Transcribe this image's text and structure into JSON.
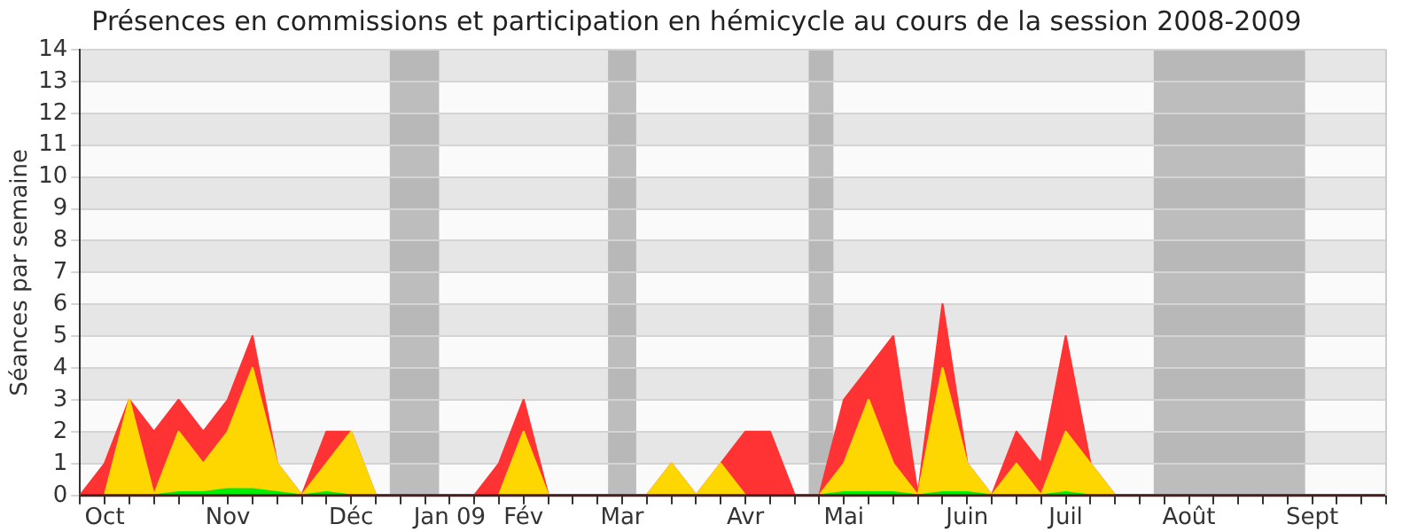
{
  "chart_data": {
    "type": "area",
    "title": "Présences en commissions et participation en hémicycle au cours de la session 2008-2009",
    "ylabel": "Séances par semaine",
    "x": [
      "2008-09-29",
      "2008-10-06",
      "2008-10-13",
      "2008-10-20",
      "2008-10-27",
      "2008-11-03",
      "2008-11-10",
      "2008-11-17",
      "2008-11-24",
      "2008-12-01",
      "2008-12-08",
      "2008-12-15",
      "2008-12-22",
      "2008-12-29",
      "2009-01-05",
      "2009-01-12",
      "2009-01-19",
      "2009-01-26",
      "2009-02-02",
      "2009-02-09",
      "2009-02-16",
      "2009-02-23",
      "2009-03-02",
      "2009-03-09",
      "2009-03-16",
      "2009-03-23",
      "2009-03-30",
      "2009-04-06",
      "2009-04-13",
      "2009-04-20",
      "2009-04-27",
      "2009-05-04",
      "2009-05-11",
      "2009-05-18",
      "2009-05-25",
      "2009-06-01",
      "2009-06-08",
      "2009-06-15",
      "2009-06-22",
      "2009-06-29",
      "2009-07-06",
      "2009-07-13",
      "2009-07-20",
      "2009-07-27",
      "2009-08-03",
      "2009-08-10",
      "2009-08-17",
      "2009-08-24",
      "2009-08-31",
      "2009-09-07",
      "2009-09-14",
      "2009-09-21",
      "2009-09-28",
      "2009-10-05"
    ],
    "series": [
      {
        "color": "#ff3333",
        "values": [
          0,
          1,
          3,
          2,
          3,
          2,
          3,
          5,
          1,
          0,
          2,
          2,
          0,
          0,
          0,
          0,
          0,
          1,
          3,
          0,
          0,
          0,
          0,
          0,
          1,
          0,
          1,
          2,
          2,
          0,
          0,
          3,
          4,
          5,
          0,
          6,
          1,
          0,
          2,
          1,
          5,
          1,
          0,
          0,
          0,
          0,
          0,
          0,
          0,
          0,
          0,
          0,
          0,
          0
        ]
      },
      {
        "color": "#ffd700",
        "values": [
          0,
          0,
          3,
          0,
          2,
          1,
          2,
          4,
          1,
          0,
          1,
          2,
          0,
          0,
          0,
          0,
          0,
          0,
          2,
          0,
          0,
          0,
          0,
          0,
          1,
          0,
          1,
          0,
          0,
          0,
          0,
          1,
          3,
          1,
          0,
          4,
          1,
          0,
          1,
          0,
          2,
          1,
          0,
          0,
          0,
          0,
          0,
          0,
          0,
          0,
          0,
          0,
          0,
          0
        ]
      },
      {
        "color": "#00ee00",
        "values": [
          0,
          0,
          0,
          0,
          0.1,
          0.1,
          0.2,
          0.2,
          0.1,
          0,
          0.1,
          0,
          0,
          0,
          0,
          0,
          0,
          0,
          0,
          0,
          0,
          0,
          0,
          0,
          0,
          0,
          0,
          0,
          0,
          0,
          0,
          0.1,
          0.1,
          0.1,
          0,
          0.1,
          0.1,
          0,
          0,
          0,
          0.1,
          0,
          0,
          0,
          0,
          0,
          0,
          0,
          0,
          0,
          0,
          0,
          0,
          0
        ]
      }
    ],
    "xlim": [
      "2008-09-29",
      "2009-10-05"
    ],
    "xticks": [
      {
        "value": "2008-09-29",
        "label": null
      },
      {
        "value": "2008-10-06",
        "label": "Oct"
      },
      {
        "value": "2008-10-13",
        "label": null
      },
      {
        "value": "2008-10-20",
        "label": null
      },
      {
        "value": "2008-10-27",
        "label": null
      },
      {
        "value": "2008-11-03",
        "label": null
      },
      {
        "value": "2008-11-10",
        "label": "Nov"
      },
      {
        "value": "2008-11-17",
        "label": null
      },
      {
        "value": "2008-11-24",
        "label": null
      },
      {
        "value": "2008-12-01",
        "label": null
      },
      {
        "value": "2008-12-08",
        "label": null
      },
      {
        "value": "2008-12-15",
        "label": "Déc"
      },
      {
        "value": "2008-12-22",
        "label": null
      },
      {
        "value": "2008-12-29",
        "label": null
      },
      {
        "value": "2009-01-05",
        "label": null
      },
      {
        "value": "2009-01-12",
        "label": "Jan 09"
      },
      {
        "value": "2009-01-19",
        "label": null
      },
      {
        "value": "2009-01-26",
        "label": null
      },
      {
        "value": "2009-02-02",
        "label": "Fév"
      },
      {
        "value": "2009-02-09",
        "label": null
      },
      {
        "value": "2009-02-16",
        "label": null
      },
      {
        "value": "2009-02-23",
        "label": null
      },
      {
        "value": "2009-03-02",
        "label": "Mar"
      },
      {
        "value": "2009-03-09",
        "label": null
      },
      {
        "value": "2009-03-16",
        "label": null
      },
      {
        "value": "2009-03-23",
        "label": null
      },
      {
        "value": "2009-03-30",
        "label": null
      },
      {
        "value": "2009-04-06",
        "label": "Avr"
      },
      {
        "value": "2009-04-13",
        "label": null
      },
      {
        "value": "2009-04-20",
        "label": null
      },
      {
        "value": "2009-04-27",
        "label": null
      },
      {
        "value": "2009-05-04",
        "label": "Mai"
      },
      {
        "value": "2009-05-11",
        "label": null
      },
      {
        "value": "2009-05-18",
        "label": null
      },
      {
        "value": "2009-05-25",
        "label": null
      },
      {
        "value": "2009-06-01",
        "label": null
      },
      {
        "value": "2009-06-08",
        "label": "Juin"
      },
      {
        "value": "2009-06-15",
        "label": null
      },
      {
        "value": "2009-06-22",
        "label": null
      },
      {
        "value": "2009-06-29",
        "label": null
      },
      {
        "value": "2009-07-06",
        "label": "Juil"
      },
      {
        "value": "2009-07-13",
        "label": null
      },
      {
        "value": "2009-07-20",
        "label": null
      },
      {
        "value": "2009-07-27",
        "label": null
      },
      {
        "value": "2009-08-03",
        "label": null
      },
      {
        "value": "2009-08-10",
        "label": "Août"
      },
      {
        "value": "2009-08-17",
        "label": null
      },
      {
        "value": "2009-08-24",
        "label": null
      },
      {
        "value": "2009-08-31",
        "label": null
      },
      {
        "value": "2009-09-07",
        "label": null
      },
      {
        "value": "2009-09-14",
        "label": "Sept"
      },
      {
        "value": "2009-09-21",
        "label": null
      },
      {
        "value": "2009-09-28",
        "label": null
      },
      {
        "value": "2009-10-05",
        "label": null
      }
    ],
    "ylim": [
      0,
      14
    ],
    "yticks": [
      0,
      1,
      2,
      3,
      4,
      5,
      6,
      7,
      8,
      9,
      10,
      11,
      12,
      13,
      14
    ],
    "bands": [
      {
        "axis": "x",
        "from": "2008-12-26",
        "to": "2009-01-09",
        "color": "#a8a8a8"
      },
      {
        "axis": "x",
        "from": "2009-02-26",
        "to": "2009-03-06",
        "color": "#a8a8a8"
      },
      {
        "axis": "x",
        "from": "2009-04-24",
        "to": "2009-05-01",
        "color": "#a8a8a8"
      },
      {
        "axis": "x",
        "from": "2009-07-31",
        "to": "2009-09-12",
        "color": "#a8a8a8"
      }
    ],
    "grid": true,
    "legend": false,
    "marker": "none"
  }
}
